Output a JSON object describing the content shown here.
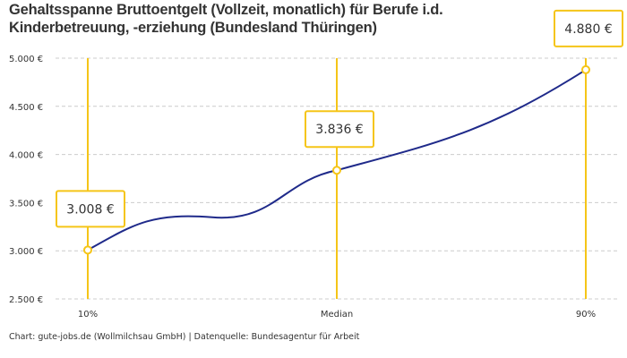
{
  "title": "Gehaltsspanne Bruttoentgelt (Vollzeit, monatlich) für Berufe i.d. Kinderbetreuung, -erziehung (Bundesland Thüringen)",
  "footer": "Chart: gute-jobs.de (Wollmilchsau GmbH) | Datenquelle: Bundesagentur für Arbeit",
  "colors": {
    "line": "#1f2a8a",
    "accent": "#f5c518",
    "grid": "#cccccc"
  },
  "chart_data": {
    "type": "line",
    "title": "Gehaltsspanne Bruttoentgelt (Vollzeit, monatlich) für Berufe i.d. Kinderbetreuung, -erziehung (Bundesland Thüringen)",
    "categories": [
      "10%",
      "Median",
      "90%"
    ],
    "values": [
      3008,
      3836,
      4880
    ],
    "data_labels": [
      "3.008 €",
      "3.836 €",
      "4.880 €"
    ],
    "ylim": [
      2500,
      5000
    ],
    "yticks": [
      2500,
      3000,
      3500,
      4000,
      4500,
      5000
    ],
    "ytick_labels": [
      "2.500 €",
      "3.000 €",
      "3.500 €",
      "4.000 €",
      "4.500 €",
      "5.000 €"
    ],
    "grid": true,
    "legend": "none"
  }
}
